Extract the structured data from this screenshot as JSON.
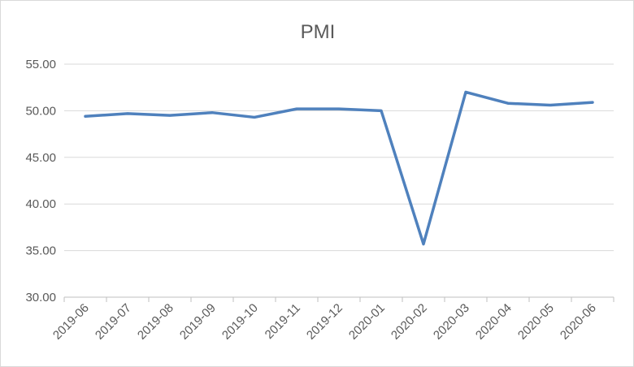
{
  "chart_data": {
    "type": "line",
    "title": "PMI",
    "xlabel": "",
    "ylabel": "",
    "categories": [
      "2019-06",
      "2019-07",
      "2019-08",
      "2019-09",
      "2019-10",
      "2019-11",
      "2019-12",
      "2020-01",
      "2020-02",
      "2020-03",
      "2020-04",
      "2020-05",
      "2020-06"
    ],
    "series": [
      {
        "values": [
          49.4,
          49.7,
          49.5,
          49.8,
          49.3,
          50.2,
          50.2,
          50.0,
          35.7,
          52.0,
          50.8,
          50.6,
          50.9
        ]
      }
    ],
    "y_ticks": [
      "30.00",
      "35.00",
      "40.00",
      "45.00",
      "50.00",
      "55.00"
    ],
    "ylim": [
      30,
      55
    ],
    "grid": true,
    "legend": "none",
    "colors": {
      "line": "#4f81bd",
      "grid": "#d9d9d9",
      "text": "#595959"
    }
  }
}
